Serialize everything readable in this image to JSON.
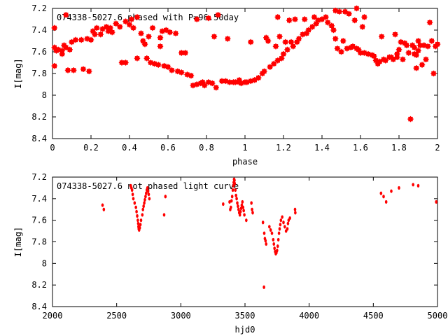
{
  "chart_data": [
    {
      "type": "scatter",
      "title": "074338-5027.6 phased with P=96.50day",
      "xlabel": "phase",
      "ylabel": "I[mag]",
      "xlim": [
        0,
        2
      ],
      "ylim": [
        7.2,
        8.4
      ],
      "y_inverted": true,
      "x_ticks": [
        "0",
        "0.2",
        "0.4",
        "0.6",
        "0.8",
        "1",
        "1.2",
        "1.4",
        "1.6",
        "1.8",
        "2"
      ],
      "y_ticks": [
        "7.2",
        "7.4",
        "7.6",
        "7.8",
        "8",
        "8.2",
        "8.4"
      ],
      "marker_color": "#ff0000",
      "points": [
        [
          0.01,
          7.38
        ],
        [
          0.01,
          7.73
        ],
        [
          0.02,
          7.59
        ],
        [
          0.01,
          7.56
        ],
        [
          0.03,
          7.58
        ],
        [
          0.05,
          7.59
        ],
        [
          0.05,
          7.62
        ],
        [
          0.06,
          7.54
        ],
        [
          0.07,
          7.26
        ],
        [
          0.07,
          7.56
        ],
        [
          0.08,
          7.77
        ],
        [
          0.09,
          7.58
        ],
        [
          0.1,
          7.51
        ],
        [
          0.11,
          7.77
        ],
        [
          0.12,
          7.49
        ],
        [
          0.15,
          7.49
        ],
        [
          0.16,
          7.76
        ],
        [
          0.18,
          7.48
        ],
        [
          0.19,
          7.78
        ],
        [
          0.2,
          7.49
        ],
        [
          0.21,
          7.41
        ],
        [
          0.22,
          7.44
        ],
        [
          0.23,
          7.38
        ],
        [
          0.25,
          7.44
        ],
        [
          0.26,
          7.39
        ],
        [
          0.28,
          7.37
        ],
        [
          0.29,
          7.41
        ],
        [
          0.3,
          7.38
        ],
        [
          0.31,
          7.42
        ],
        [
          0.33,
          7.34
        ],
        [
          0.35,
          7.37
        ],
        [
          0.36,
          7.7
        ],
        [
          0.38,
          7.32
        ],
        [
          0.38,
          7.7
        ],
        [
          0.4,
          7.35
        ],
        [
          0.41,
          7.3
        ],
        [
          0.42,
          7.38
        ],
        [
          0.44,
          7.66
        ],
        [
          0.44,
          7.28
        ],
        [
          0.46,
          7.43
        ],
        [
          0.47,
          7.5
        ],
        [
          0.48,
          7.53
        ],
        [
          0.49,
          7.66
        ],
        [
          0.5,
          7.46
        ],
        [
          0.52,
          7.38
        ],
        [
          0.51,
          7.7
        ],
        [
          0.53,
          7.71
        ],
        [
          0.55,
          7.72
        ],
        [
          0.56,
          7.47
        ],
        [
          0.57,
          7.41
        ],
        [
          0.58,
          7.73
        ],
        [
          0.59,
          7.4
        ],
        [
          0.6,
          7.74
        ],
        [
          0.61,
          7.42
        ],
        [
          0.62,
          7.77
        ],
        [
          0.64,
          7.43
        ],
        [
          0.65,
          7.78
        ],
        [
          0.67,
          7.79
        ],
        [
          0.67,
          7.61
        ],
        [
          0.69,
          7.61
        ],
        [
          0.7,
          7.81
        ],
        [
          0.72,
          7.82
        ],
        [
          0.73,
          7.91
        ],
        [
          0.75,
          7.9
        ],
        [
          0.77,
          7.89
        ],
        [
          0.78,
          7.88
        ],
        [
          0.79,
          7.91
        ],
        [
          0.81,
          7.29
        ],
        [
          0.81,
          7.88
        ],
        [
          0.83,
          7.89
        ],
        [
          0.84,
          7.46
        ],
        [
          0.85,
          7.93
        ],
        [
          0.86,
          7.26
        ],
        [
          0.88,
          7.87
        ],
        [
          0.9,
          7.87
        ],
        [
          0.91,
          7.48
        ],
        [
          0.92,
          7.88
        ],
        [
          0.94,
          7.88
        ],
        [
          0.95,
          7.88
        ],
        [
          0.97,
          7.86
        ],
        [
          0.98,
          7.89
        ],
        [
          1.0,
          7.88
        ],
        [
          1.01,
          7.88
        ],
        [
          1.03,
          7.51
        ],
        [
          1.03,
          7.87
        ],
        [
          1.05,
          7.86
        ],
        [
          1.07,
          7.84
        ],
        [
          1.09,
          7.8
        ],
        [
          1.1,
          7.78
        ],
        [
          1.11,
          7.47
        ],
        [
          1.12,
          7.5
        ],
        [
          1.13,
          7.74
        ],
        [
          1.15,
          7.71
        ],
        [
          1.16,
          7.55
        ],
        [
          1.17,
          7.28
        ],
        [
          1.17,
          7.68
        ],
        [
          1.18,
          7.46
        ],
        [
          1.19,
          7.66
        ],
        [
          1.2,
          7.62
        ],
        [
          1.21,
          7.51
        ],
        [
          1.22,
          7.58
        ],
        [
          1.23,
          7.31
        ],
        [
          1.24,
          7.51
        ],
        [
          1.25,
          7.55
        ],
        [
          1.26,
          7.3
        ],
        [
          1.27,
          7.51
        ],
        [
          1.28,
          7.48
        ],
        [
          1.3,
          7.44
        ],
        [
          1.31,
          7.3
        ],
        [
          1.32,
          7.43
        ],
        [
          1.33,
          7.4
        ],
        [
          1.35,
          7.37
        ],
        [
          1.36,
          7.28
        ],
        [
          1.37,
          7.34
        ],
        [
          1.38,
          7.31
        ],
        [
          1.4,
          7.3
        ],
        [
          1.42,
          7.28
        ],
        [
          1.43,
          7.33
        ],
        [
          1.45,
          7.36
        ],
        [
          1.46,
          7.4
        ],
        [
          1.47,
          7.22
        ],
        [
          1.47,
          7.48
        ],
        [
          1.48,
          7.57
        ],
        [
          1.49,
          7.23
        ],
        [
          1.5,
          7.6
        ],
        [
          1.51,
          7.5
        ],
        [
          1.52,
          7.23
        ],
        [
          1.53,
          7.57
        ],
        [
          1.54,
          7.25
        ],
        [
          1.55,
          7.56
        ],
        [
          1.56,
          7.55
        ],
        [
          1.57,
          7.31
        ],
        [
          1.58,
          7.2
        ],
        [
          1.58,
          7.57
        ],
        [
          1.59,
          7.58
        ],
        [
          1.6,
          7.61
        ],
        [
          1.61,
          7.37
        ],
        [
          1.62,
          7.28
        ],
        [
          1.62,
          7.61
        ],
        [
          1.64,
          7.62
        ],
        [
          1.66,
          7.63
        ],
        [
          1.67,
          7.64
        ],
        [
          1.68,
          7.68
        ],
        [
          1.69,
          7.71
        ],
        [
          1.7,
          7.69
        ],
        [
          1.71,
          7.46
        ],
        [
          1.72,
          7.67
        ],
        [
          1.73,
          7.68
        ],
        [
          1.75,
          7.65
        ],
        [
          1.76,
          7.65
        ],
        [
          1.77,
          7.67
        ],
        [
          1.78,
          7.44
        ],
        [
          1.79,
          7.65
        ],
        [
          1.79,
          7.62
        ],
        [
          1.8,
          7.58
        ],
        [
          1.81,
          7.51
        ],
        [
          1.82,
          7.67
        ],
        [
          1.83,
          7.52
        ],
        [
          1.84,
          7.54
        ],
        [
          1.85,
          7.61
        ],
        [
          1.86,
          8.22
        ],
        [
          1.87,
          7.54
        ],
        [
          1.88,
          7.56
        ],
        [
          1.89,
          7.63
        ],
        [
          1.9,
          7.59
        ],
        [
          1.9,
          7.5
        ],
        [
          1.91,
          7.54
        ],
        [
          1.92,
          7.72
        ],
        [
          1.93,
          7.54
        ],
        [
          1.94,
          7.67
        ],
        [
          1.95,
          7.55
        ],
        [
          1.96,
          7.33
        ],
        [
          1.97,
          7.5
        ],
        [
          1.98,
          7.8
        ],
        [
          1.99,
          7.55
        ],
        [
          2.0,
          7.53
        ],
        [
          0.97,
          7.88
        ],
        [
          0.75,
          7.3
        ],
        [
          0.56,
          7.55
        ],
        [
          1.88,
          7.62
        ],
        [
          1.89,
          7.75
        ]
      ]
    },
    {
      "type": "scatter",
      "title": "074338-5027.6 not phased light curve",
      "xlabel": "hjd0",
      "ylabel": "I[mag]",
      "xlim": [
        2000,
        5000
      ],
      "ylim": [
        7.2,
        8.4
      ],
      "y_inverted": true,
      "x_ticks": [
        "2000",
        "2500",
        "3000",
        "3500",
        "4000",
        "4500",
        "5000"
      ],
      "y_ticks": [
        "7.2",
        "7.4",
        "7.6",
        "7.8",
        "8",
        "8.2",
        "8.4"
      ],
      "marker_color": "#ff0000",
      "points": [
        [
          2390,
          7.46
        ],
        [
          2400,
          7.5
        ],
        [
          2610,
          7.28
        ],
        [
          2615,
          7.3
        ],
        [
          2620,
          7.32
        ],
        [
          2625,
          7.36
        ],
        [
          2630,
          7.4
        ],
        [
          2640,
          7.44
        ],
        [
          2650,
          7.48
        ],
        [
          2655,
          7.52
        ],
        [
          2660,
          7.56
        ],
        [
          2665,
          7.6
        ],
        [
          2668,
          7.63
        ],
        [
          2670,
          7.66
        ],
        [
          2672,
          7.68
        ],
        [
          2675,
          7.69
        ],
        [
          2680,
          7.67
        ],
        [
          2685,
          7.64
        ],
        [
          2690,
          7.6
        ],
        [
          2700,
          7.55
        ],
        [
          2705,
          7.5
        ],
        [
          2710,
          7.47
        ],
        [
          2715,
          7.44
        ],
        [
          2720,
          7.41
        ],
        [
          2725,
          7.38
        ],
        [
          2730,
          7.35
        ],
        [
          2735,
          7.32
        ],
        [
          2740,
          7.3
        ],
        [
          2745,
          7.33
        ],
        [
          2750,
          7.36
        ],
        [
          2755,
          7.4
        ],
        [
          2870,
          7.55
        ],
        [
          2880,
          7.38
        ],
        [
          3330,
          7.45
        ],
        [
          3380,
          7.43
        ],
        [
          3385,
          7.5
        ],
        [
          3390,
          7.48
        ],
        [
          3395,
          7.42
        ],
        [
          3400,
          7.38
        ],
        [
          3405,
          7.32
        ],
        [
          3410,
          7.28
        ],
        [
          3412,
          7.25
        ],
        [
          3415,
          7.22
        ],
        [
          3418,
          7.23
        ],
        [
          3420,
          7.26
        ],
        [
          3425,
          7.32
        ],
        [
          3430,
          7.37
        ],
        [
          3435,
          7.4
        ],
        [
          3440,
          7.44
        ],
        [
          3445,
          7.47
        ],
        [
          3450,
          7.5
        ],
        [
          3455,
          7.53
        ],
        [
          3460,
          7.55
        ],
        [
          3465,
          7.52
        ],
        [
          3470,
          7.49
        ],
        [
          3475,
          7.46
        ],
        [
          3480,
          7.43
        ],
        [
          3485,
          7.48
        ],
        [
          3490,
          7.51
        ],
        [
          3495,
          7.55
        ],
        [
          3510,
          7.6
        ],
        [
          3550,
          7.44
        ],
        [
          3555,
          7.5
        ],
        [
          3560,
          7.53
        ],
        [
          3640,
          7.62
        ],
        [
          3650,
          7.72
        ],
        [
          3655,
          7.77
        ],
        [
          3660,
          7.79
        ],
        [
          3665,
          7.82
        ],
        [
          3648,
          8.22
        ],
        [
          3690,
          7.66
        ],
        [
          3700,
          7.69
        ],
        [
          3710,
          7.72
        ],
        [
          3720,
          7.78
        ],
        [
          3725,
          7.82
        ],
        [
          3730,
          7.86
        ],
        [
          3735,
          7.89
        ],
        [
          3740,
          7.91
        ],
        [
          3745,
          7.9
        ],
        [
          3750,
          7.88
        ],
        [
          3755,
          7.84
        ],
        [
          3760,
          7.78
        ],
        [
          3765,
          7.72
        ],
        [
          3770,
          7.68
        ],
        [
          3775,
          7.64
        ],
        [
          3780,
          7.6
        ],
        [
          3790,
          7.57
        ],
        [
          3800,
          7.62
        ],
        [
          3810,
          7.66
        ],
        [
          3820,
          7.7
        ],
        [
          3830,
          7.68
        ],
        [
          3835,
          7.63
        ],
        [
          3840,
          7.6
        ],
        [
          3850,
          7.58
        ],
        [
          3890,
          7.5
        ],
        [
          3892,
          7.53
        ],
        [
          4560,
          7.35
        ],
        [
          4580,
          7.38
        ],
        [
          4600,
          7.43
        ],
        [
          4640,
          7.33
        ],
        [
          4700,
          7.3
        ],
        [
          4810,
          7.27
        ],
        [
          4850,
          7.28
        ],
        [
          4990,
          7.43
        ]
      ]
    }
  ]
}
